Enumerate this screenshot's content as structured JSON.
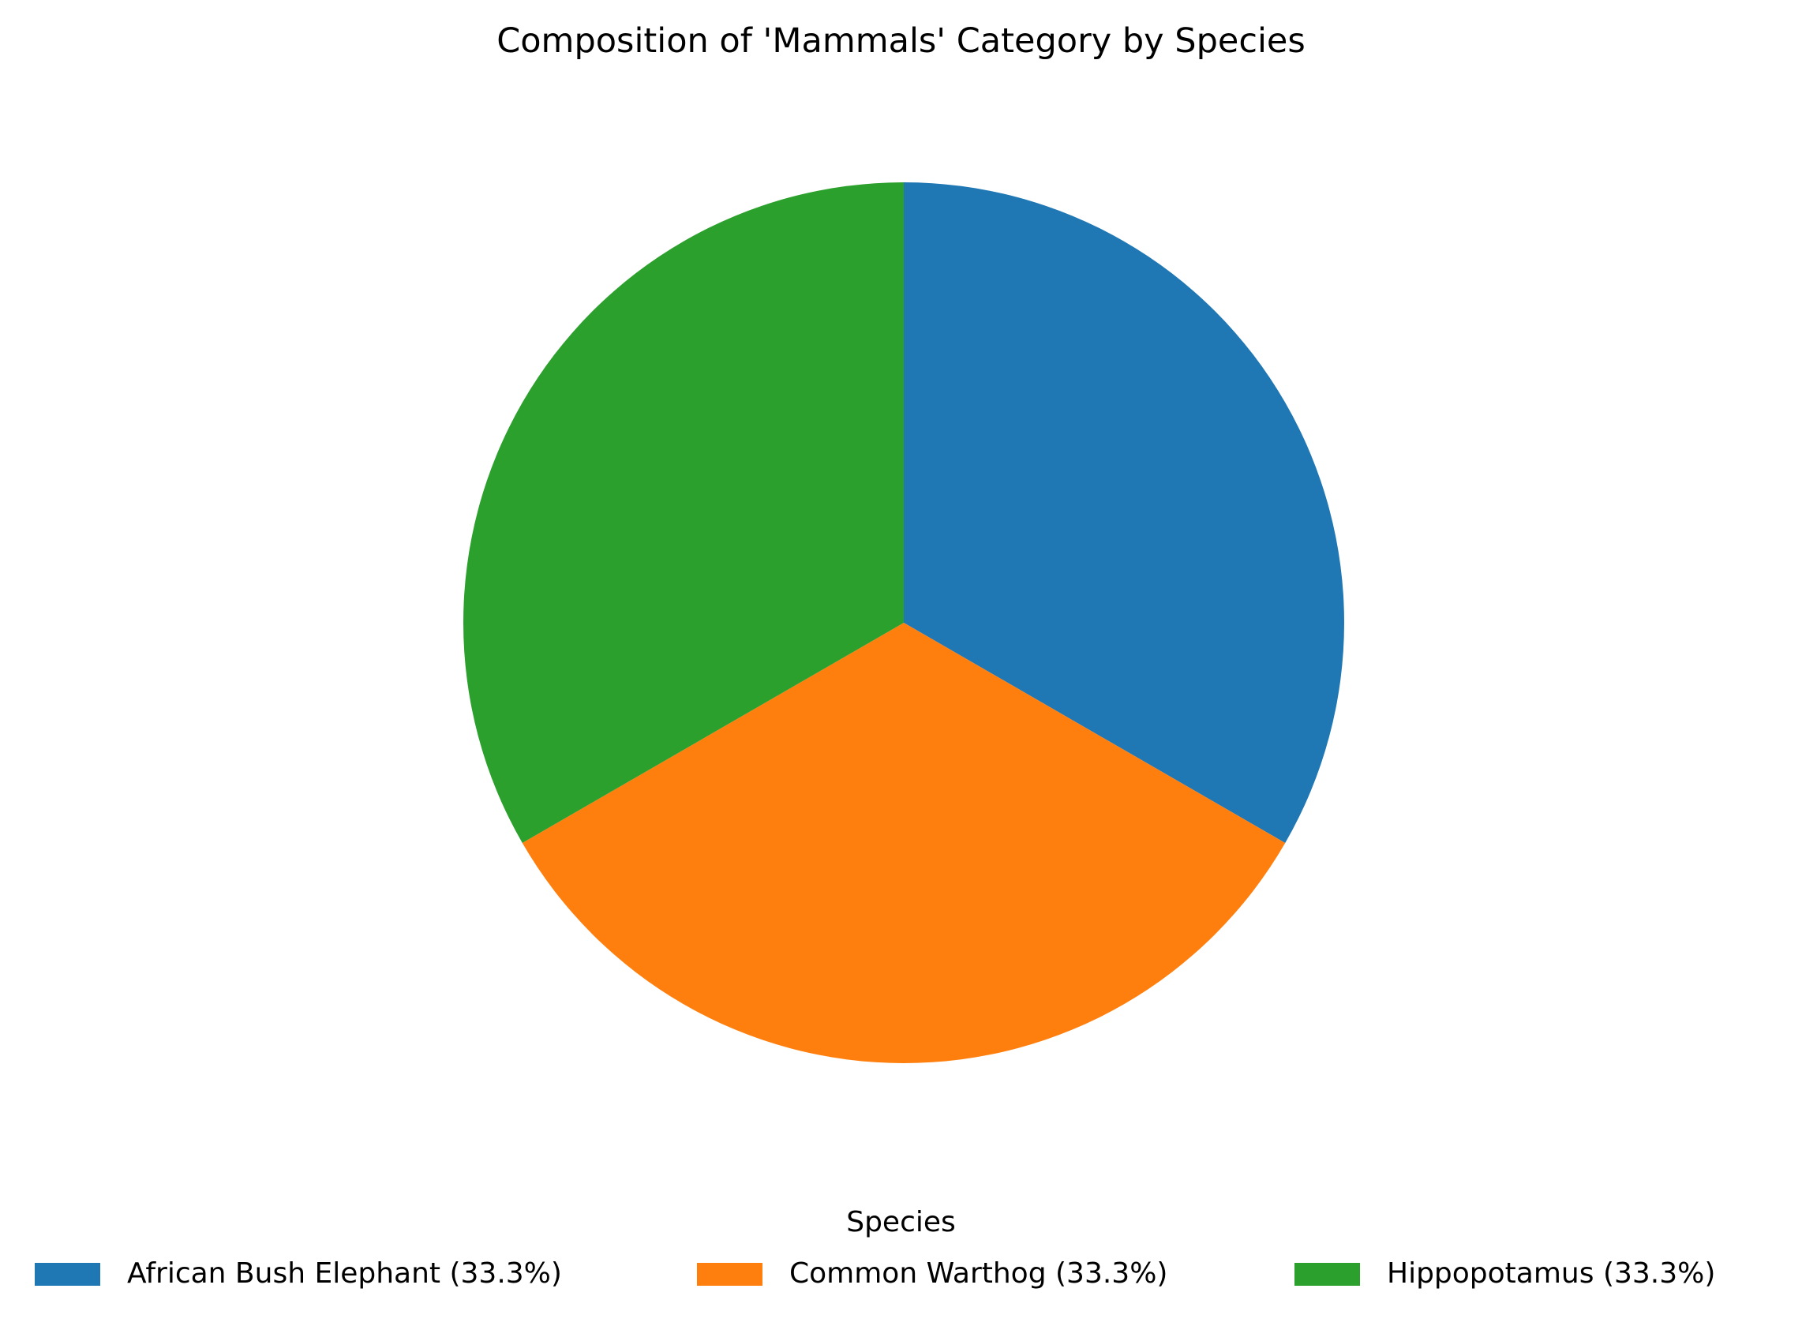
{
  "chart_data": {
    "type": "pie",
    "title": "Composition of 'Mammals' Category by Species",
    "legend": {
      "title": "Species",
      "placement": "bottom-center"
    },
    "slices": [
      {
        "label": "African Bush Elephant (33.3%)",
        "value": 33.3,
        "color": "#1f77b4"
      },
      {
        "label": "Common Warthog (33.3%)",
        "value": 33.3,
        "color": "#ff7f0e"
      },
      {
        "label": "Hippopotamus (33.3%)",
        "value": 33.3,
        "color": "#2ca02c"
      }
    ],
    "start_angle_deg": 90,
    "direction": "clockwise"
  }
}
